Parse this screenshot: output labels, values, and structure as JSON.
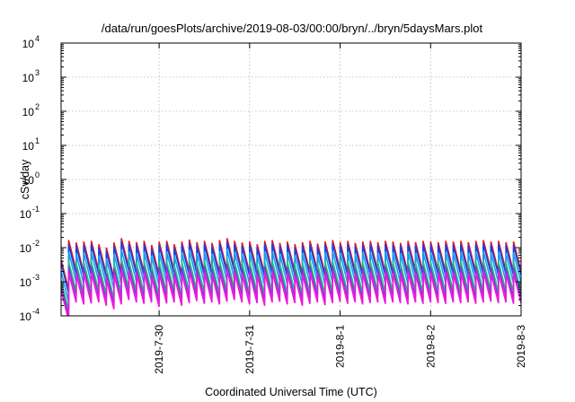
{
  "chart_data": {
    "type": "line",
    "title": "/data/run/goesPlots/archive/2019-08-03/00:00/bryn/../bryn/5daysMars.plot",
    "xlabel": "Coordinated Universal Time (UTC)",
    "ylabel": "cSv/day",
    "y_scale": "log",
    "ylim": [
      0.0001,
      10000
    ],
    "y_ticks": [
      {
        "base": "10",
        "exp": "-4",
        "value": 0.0001
      },
      {
        "base": "10",
        "exp": "-3",
        "value": 0.001
      },
      {
        "base": "10",
        "exp": "-2",
        "value": 0.01
      },
      {
        "base": "10",
        "exp": "-1",
        "value": 0.1
      },
      {
        "base": "10",
        "exp": "0",
        "value": 1
      },
      {
        "base": "10",
        "exp": "1",
        "value": 10
      },
      {
        "base": "10",
        "exp": "2",
        "value": 100
      },
      {
        "base": "10",
        "exp": "3",
        "value": 1000
      },
      {
        "base": "10",
        "exp": "4",
        "value": 10000
      }
    ],
    "xlim": [
      "2019-07-28T22:00",
      "2019-08-03T00:00"
    ],
    "x_ticks": [
      {
        "label": "2019-7-30",
        "value": "2019-07-30T00:00"
      },
      {
        "label": "2019-7-31",
        "value": "2019-07-31T00:00"
      },
      {
        "label": "2019-8-1",
        "value": "2019-08-01T00:00"
      },
      {
        "label": "2019-8-2",
        "value": "2019-08-02T00:00"
      },
      {
        "label": "2019-8-3",
        "value": "2019-08-03T00:00"
      }
    ],
    "grid": true,
    "sawtooth": {
      "first_peak": "2019-07-28T22:00",
      "period_hours": 2.0,
      "decay_ratio": 0.13
    },
    "series": [
      {
        "color": "#e8141c",
        "peaks_log10": [
          -2.35,
          -1.78,
          -1.85,
          -1.82,
          -1.8,
          -1.9,
          -2.0,
          -1.85,
          -1.72,
          -1.8,
          -1.84,
          -1.8,
          -1.92,
          -1.83,
          -1.8,
          -1.9,
          -1.82,
          -1.76,
          -1.84,
          -1.8,
          -1.86,
          -1.78,
          -1.72,
          -1.8,
          -1.85,
          -1.82,
          -1.9,
          -1.8,
          -1.78,
          -1.86,
          -1.82,
          -1.9,
          -1.84,
          -1.8,
          -1.88,
          -1.82,
          -1.78,
          -1.84,
          -1.8,
          -1.86,
          -1.82,
          -1.8,
          -1.84,
          -1.8,
          -1.82,
          -1.86,
          -1.8,
          -1.84,
          -1.8,
          -1.82,
          -1.84,
          -1.8,
          -1.82,
          -1.8,
          -1.84,
          -1.8,
          -1.78,
          -1.82,
          -1.8,
          -1.84,
          -1.82
        ]
      },
      {
        "color": "#1a3fe0",
        "peaks_log10": [
          -2.45,
          -1.9,
          -1.95,
          -1.93,
          -1.9,
          -2.0,
          -2.1,
          -1.95,
          -1.82,
          -1.9,
          -1.94,
          -1.9,
          -2.02,
          -1.93,
          -1.9,
          -2.0,
          -1.92,
          -1.86,
          -1.94,
          -1.9,
          -1.96,
          -1.88,
          -1.82,
          -1.9,
          -1.95,
          -1.92,
          -2.0,
          -1.9,
          -1.88,
          -1.96,
          -1.92,
          -2.0,
          -1.94,
          -1.9,
          -1.98,
          -1.92,
          -1.88,
          -1.94,
          -1.9,
          -1.96,
          -1.92,
          -1.9,
          -1.94,
          -1.9,
          -1.92,
          -1.96,
          -1.9,
          -1.94,
          -1.9,
          -1.92,
          -1.94,
          -1.9,
          -1.92,
          -1.9,
          -1.94,
          -1.9,
          -1.88,
          -1.92,
          -1.9,
          -1.94,
          -1.92
        ]
      },
      {
        "color": "#14a0e8",
        "peaks_log10": [
          -2.7,
          -2.12,
          -2.18,
          -2.15,
          -2.12,
          -2.22,
          -2.32,
          -2.18,
          -2.05,
          -2.12,
          -2.16,
          -2.12,
          -2.24,
          -2.15,
          -2.12,
          -2.22,
          -2.14,
          -2.08,
          -2.16,
          -2.12,
          -2.18,
          -2.1,
          -2.05,
          -2.12,
          -2.18,
          -2.14,
          -2.22,
          -2.12,
          -2.1,
          -2.18,
          -2.14,
          -2.22,
          -2.16,
          -2.12,
          -2.2,
          -2.14,
          -2.1,
          -2.16,
          -2.12,
          -2.18,
          -2.14,
          -2.12,
          -2.16,
          -2.12,
          -2.14,
          -2.18,
          -2.12,
          -2.16,
          -2.12,
          -2.14,
          -2.16,
          -2.12,
          -2.14,
          -2.12,
          -2.16,
          -2.12,
          -2.1,
          -2.14,
          -2.12,
          -2.16,
          -2.14
        ]
      },
      {
        "color": "#16c48a",
        "peaks_log10": [
          -2.95,
          -2.4,
          -2.45,
          -2.42,
          -2.4,
          -2.5,
          -2.6,
          -2.45,
          -2.32,
          -2.4,
          -2.44,
          -2.4,
          -2.52,
          -2.42,
          -2.4,
          -2.5,
          -2.42,
          -2.36,
          -2.44,
          -2.4,
          -2.46,
          -2.38,
          -2.32,
          -2.4,
          -2.45,
          -2.42,
          -2.5,
          -2.4,
          -2.38,
          -2.46,
          -2.42,
          -2.5,
          -2.44,
          -2.4,
          -2.48,
          -2.42,
          -2.38,
          -2.44,
          -2.4,
          -2.46,
          -2.42,
          -2.4,
          -2.44,
          -2.4,
          -2.42,
          -2.46,
          -2.4,
          -2.44,
          -2.4,
          -2.42,
          -2.44,
          -2.4,
          -2.42,
          -2.4,
          -2.44,
          -2.4,
          -2.38,
          -2.42,
          -2.4,
          -2.44,
          -2.42
        ]
      },
      {
        "color": "#7b3fc8",
        "peaks_log10": [
          -3.1,
          -2.55,
          -2.6,
          -2.58,
          -2.55,
          -2.65,
          -2.75,
          -2.6,
          -2.48,
          -2.55,
          -2.6,
          -2.55,
          -2.68,
          -2.58,
          -2.55,
          -2.65,
          -2.58,
          -2.52,
          -2.6,
          -2.55,
          -2.62,
          -2.54,
          -2.48,
          -2.55,
          -2.6,
          -2.58,
          -2.65,
          -2.55,
          -2.54,
          -2.62,
          -2.58,
          -2.65,
          -2.6,
          -2.55,
          -2.64,
          -2.58,
          -2.54,
          -2.6,
          -2.55,
          -2.62,
          -2.58,
          -2.55,
          -2.6,
          -2.55,
          -2.58,
          -2.62,
          -2.55,
          -2.6,
          -2.55,
          -2.58,
          -2.6,
          -2.55,
          -2.58,
          -2.55,
          -2.6,
          -2.55,
          -2.54,
          -2.58,
          -2.55,
          -2.6,
          -2.58
        ]
      },
      {
        "color": "#f014e0",
        "peaks_log10": [
          -3.25,
          -2.72,
          -2.78,
          -2.75,
          -2.72,
          -2.82,
          -2.92,
          -2.78,
          -2.65,
          -2.72,
          -2.76,
          -2.72,
          -2.85,
          -2.75,
          -2.72,
          -2.82,
          -2.74,
          -2.68,
          -2.76,
          -2.72,
          -2.78,
          -2.7,
          -2.65,
          -2.72,
          -2.78,
          -2.74,
          -2.82,
          -2.72,
          -2.7,
          -2.78,
          -2.74,
          -2.82,
          -2.76,
          -2.72,
          -2.8,
          -2.74,
          -2.7,
          -2.76,
          -2.72,
          -2.78,
          -2.74,
          -2.72,
          -2.76,
          -2.72,
          -2.74,
          -2.78,
          -2.72,
          -2.76,
          -2.72,
          -2.74,
          -2.76,
          -2.72,
          -2.74,
          -2.72,
          -2.76,
          -2.72,
          -2.7,
          -2.74,
          -2.72,
          -2.76,
          -2.74
        ]
      }
    ]
  }
}
